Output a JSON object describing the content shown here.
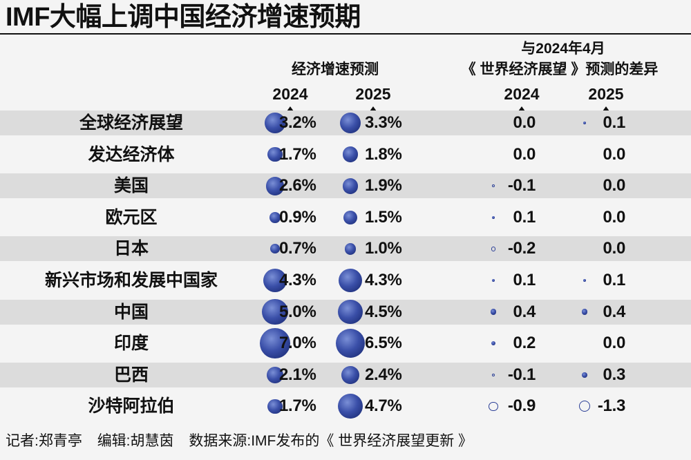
{
  "title": "IMF大幅上调中国经济增速预期",
  "headers": {
    "forecast_group": "经济增速预测",
    "diff_group_line1": "与2024年4月",
    "diff_group_line2": "《 世界经济展望 》预测的差异",
    "forecast_2024": "2024",
    "forecast_2025": "2025",
    "diff_2024": "2024",
    "diff_2025": "2025"
  },
  "chart_data": {
    "type": "table",
    "title": "IMF大幅上调中国经济增速预期",
    "columns": [
      "经济增速预测 2024",
      "经济增速预测 2025",
      "差异 2024",
      "差异 2025"
    ],
    "rows": [
      {
        "name": "全球经济展望",
        "g2024": 3.2,
        "g2025": 3.3,
        "d2024": 0.0,
        "d2025": 0.1,
        "g2024_label": "3.2%",
        "g2025_label": "3.3%",
        "d2024_label": "0.0",
        "d2025_label": "0.1"
      },
      {
        "name": "发达经济体",
        "g2024": 1.7,
        "g2025": 1.8,
        "d2024": 0.0,
        "d2025": 0.0,
        "g2024_label": "1.7%",
        "g2025_label": "1.8%",
        "d2024_label": "0.0",
        "d2025_label": "0.0"
      },
      {
        "name": "美国",
        "g2024": 2.6,
        "g2025": 1.9,
        "d2024": -0.1,
        "d2025": 0.0,
        "g2024_label": "2.6%",
        "g2025_label": "1.9%",
        "d2024_label": "-0.1",
        "d2025_label": "0.0"
      },
      {
        "name": "欧元区",
        "g2024": 0.9,
        "g2025": 1.5,
        "d2024": 0.1,
        "d2025": 0.0,
        "g2024_label": "0.9%",
        "g2025_label": "1.5%",
        "d2024_label": "0.1",
        "d2025_label": "0.0"
      },
      {
        "name": "日本",
        "g2024": 0.7,
        "g2025": 1.0,
        "d2024": -0.2,
        "d2025": 0.0,
        "g2024_label": "0.7%",
        "g2025_label": "1.0%",
        "d2024_label": "-0.2",
        "d2025_label": "0.0"
      },
      {
        "name": "新兴市场和发展中国家",
        "g2024": 4.3,
        "g2025": 4.3,
        "d2024": 0.1,
        "d2025": 0.1,
        "g2024_label": "4.3%",
        "g2025_label": "4.3%",
        "d2024_label": "0.1",
        "d2025_label": "0.1"
      },
      {
        "name": "中国",
        "g2024": 5.0,
        "g2025": 4.5,
        "d2024": 0.4,
        "d2025": 0.4,
        "g2024_label": "5.0%",
        "g2025_label": "4.5%",
        "d2024_label": "0.4",
        "d2025_label": "0.4"
      },
      {
        "name": "印度",
        "g2024": 7.0,
        "g2025": 6.5,
        "d2024": 0.2,
        "d2025": 0.0,
        "g2024_label": "7.0%",
        "g2025_label": "6.5%",
        "d2024_label": "0.2",
        "d2025_label": "0.0"
      },
      {
        "name": "巴西",
        "g2024": 2.1,
        "g2025": 2.4,
        "d2024": -0.1,
        "d2025": 0.3,
        "g2024_label": "2.1%",
        "g2025_label": "2.4%",
        "d2024_label": "-0.1",
        "d2025_label": "0.3"
      },
      {
        "name": "沙特阿拉伯",
        "g2024": 1.7,
        "g2025": 4.7,
        "d2024": -0.9,
        "d2025": -1.3,
        "g2024_label": "1.7%",
        "g2025_label": "4.7%",
        "d2024_label": "-0.9",
        "d2025_label": "-1.3"
      }
    ]
  },
  "colors": {
    "dot": "#2a3e96",
    "shade": "#dcdcdc",
    "background": "#f4f4f4"
  },
  "footer": {
    "reporter": "记者:郑青亭",
    "editor": "编辑:胡慧茵",
    "source": "数据来源:IMF发布的《 世界经济展望更新 》"
  }
}
